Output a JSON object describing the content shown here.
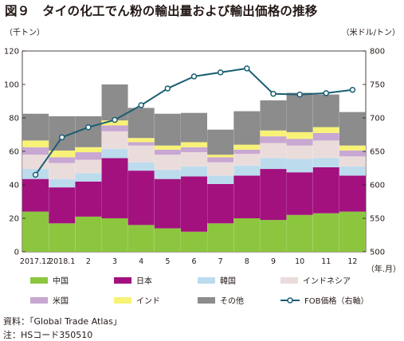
{
  "title": "図９　タイの化工でん粉の輸出量および輸出価格の推移",
  "chart_data": {
    "type": "bar",
    "stacked": true,
    "categories": [
      "2017.12",
      "2018.1",
      "2",
      "3",
      "4",
      "5",
      "6",
      "7",
      "8",
      "9",
      "10",
      "11",
      "12"
    ],
    "ylabel": "（千トン）",
    "y2label": "（米ドル/トン）",
    "xlabel": "（年.月）",
    "ylim": [
      0,
      120
    ],
    "yticks": [
      0,
      20,
      40,
      60,
      80,
      100,
      120
    ],
    "y2lim": [
      500,
      800
    ],
    "y2ticks": [
      500,
      550,
      600,
      650,
      700,
      750,
      800
    ],
    "series": [
      {
        "name": "中国",
        "color": "#8cc63f",
        "values": [
          24,
          17,
          21,
          20,
          16,
          14,
          12,
          17,
          20,
          19,
          22,
          23,
          24
        ]
      },
      {
        "name": "日本",
        "color": "#a3117f",
        "values": [
          19.5,
          21.5,
          21,
          36,
          32.5,
          29.5,
          33,
          23.5,
          25.5,
          30.5,
          25.5,
          27.5,
          21.5
        ]
      },
      {
        "name": "韓国",
        "color": "#bcdcee",
        "values": [
          6,
          5,
          5,
          5.5,
          5,
          5.5,
          6,
          5,
          6,
          6.5,
          8,
          5.5,
          5.5
        ]
      },
      {
        "name": "インドネシア",
        "color": "#ebdcdc",
        "values": [
          8.5,
          9.5,
          8,
          10.5,
          10,
          9,
          8.5,
          8,
          7,
          9,
          8,
          10.5,
          6
        ]
      },
      {
        "name": "米国",
        "color": "#c8a7d2",
        "values": [
          4.5,
          3.5,
          4.5,
          3.5,
          2,
          3,
          3,
          3,
          2.5,
          4,
          4,
          4.5,
          3.5
        ]
      },
      {
        "name": "インド",
        "color": "#f8f277",
        "values": [
          4,
          4,
          3,
          3,
          2.5,
          2.5,
          3,
          1.5,
          3,
          3.5,
          4,
          3.5,
          3
        ]
      },
      {
        "name": "その他",
        "color": "#8c8c8c",
        "values": [
          16,
          20.5,
          18.5,
          21.5,
          18,
          19,
          17.5,
          15,
          20,
          18,
          23.5,
          19.5,
          20
        ]
      }
    ],
    "line": {
      "name": "FOB価格（右軸）",
      "color": "#1a5e73",
      "axis": "right",
      "values": [
        615,
        671,
        686,
        697,
        719,
        744,
        762,
        768,
        774,
        736,
        735,
        737,
        742
      ]
    },
    "legend_position": "bottom",
    "grid": false
  },
  "source": "資料：「Global Trade Atlas」",
  "note": "注：HSコード350510"
}
